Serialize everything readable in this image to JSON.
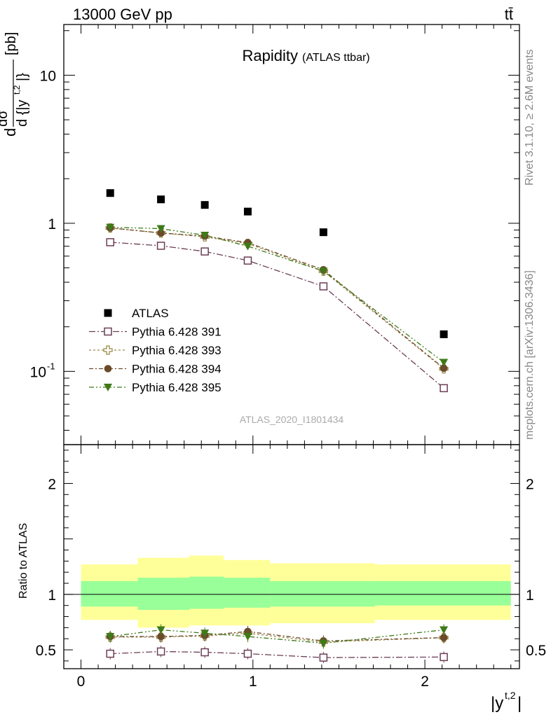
{
  "header": {
    "left": "13000 GeV pp",
    "right": "tt̄"
  },
  "side": {
    "rivet": "Rivet 3.1.10, ≥ 2.6M events",
    "site": "mcplots.cern.ch [arXiv:1306.3436]"
  },
  "chart_data": [
    {
      "type": "scatter",
      "title": "Rapidity",
      "subtitle": "(ATLAS ttbar)",
      "ylabel": "d dσ^{tt} / d {|y^{t,2}|} [pb]",
      "yscale": "log",
      "ylim": [
        0.032,
        22
      ],
      "xlim": [
        -0.1,
        2.55
      ],
      "yticks": [
        {
          "value": 10,
          "label": "10"
        },
        {
          "value": 1,
          "label": "1"
        },
        {
          "value": 0.1,
          "label": "10^-1"
        }
      ],
      "analysis_id": "ATLAS_2020_I1801434",
      "legend_position": "lower-left",
      "x": [
        0.17,
        0.465,
        0.72,
        0.97,
        1.41,
        2.11
      ],
      "series": [
        {
          "name": "ATLAS",
          "marker": "filled-square",
          "color": "#000000",
          "values": [
            1.6,
            1.45,
            1.33,
            1.2,
            0.87,
            0.178
          ]
        },
        {
          "name": "Pythia 6.428 391",
          "marker": "open-square",
          "color": "#6b3d55",
          "values": [
            0.745,
            0.705,
            0.645,
            0.56,
            0.375,
            0.077
          ]
        },
        {
          "name": "Pythia 6.428 393",
          "marker": "open-cross",
          "color": "#9a8a4a",
          "values": [
            0.93,
            0.86,
            0.81,
            0.73,
            0.475,
            0.104
          ]
        },
        {
          "name": "Pythia 6.428 394",
          "marker": "filled-circle",
          "color": "#6b4a2a",
          "values": [
            0.93,
            0.86,
            0.82,
            0.74,
            0.485,
            0.105
          ]
        },
        {
          "name": "Pythia 6.428 395",
          "marker": "filled-triangle-down",
          "color": "#3e7a18",
          "values": [
            0.94,
            0.92,
            0.83,
            0.7,
            0.475,
            0.115
          ]
        }
      ]
    },
    {
      "type": "scatter",
      "ylabel": "Ratio to ATLAS",
      "xlabel": "|y^{t,2}|",
      "xlim": [
        -0.1,
        2.55
      ],
      "ylim": [
        0.33,
        2.35
      ],
      "xticks": [
        0,
        1,
        2
      ],
      "yticks": [
        0.5,
        1,
        2
      ],
      "bands": {
        "edges": [
          0,
          0.33,
          0.63,
          0.83,
          1.1,
          1.71,
          2.5
        ],
        "yellow_low": [
          0.77,
          0.7,
          0.72,
          0.72,
          0.74,
          0.77,
          0.79
        ],
        "yellow_high": [
          1.27,
          1.33,
          1.35,
          1.31,
          1.28,
          1.27,
          1.25
        ],
        "green_low": [
          0.89,
          0.86,
          0.87,
          0.88,
          0.89,
          0.9,
          0.9
        ],
        "green_high": [
          1.12,
          1.15,
          1.16,
          1.15,
          1.12,
          1.12,
          1.11
        ]
      },
      "x": [
        0.17,
        0.465,
        0.72,
        0.97,
        1.41,
        2.11
      ],
      "series": [
        {
          "name": "Pythia 6.428 391",
          "marker": "open-square",
          "color": "#6b3d55",
          "values": [
            0.465,
            0.485,
            0.478,
            0.465,
            0.43,
            0.435
          ]
        },
        {
          "name": "Pythia 6.428 393",
          "marker": "open-cross",
          "color": "#9a8a4a",
          "values": [
            0.615,
            0.615,
            0.625,
            0.65,
            0.57,
            0.61
          ]
        },
        {
          "name": "Pythia 6.428 394",
          "marker": "filled-circle",
          "color": "#6b4a2a",
          "values": [
            0.62,
            0.62,
            0.63,
            0.665,
            0.58,
            0.61
          ]
        },
        {
          "name": "Pythia 6.428 395",
          "marker": "filled-triangle-down",
          "color": "#3e7a18",
          "values": [
            0.62,
            0.68,
            0.65,
            0.62,
            0.56,
            0.68
          ]
        }
      ]
    }
  ]
}
